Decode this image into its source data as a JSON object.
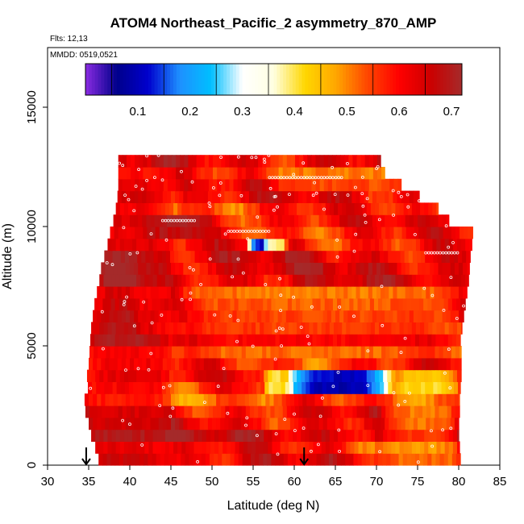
{
  "chart_data": {
    "type": "heatmap",
    "title": "ATOM4 Northeast_Pacific_2 asymmetry_870_AMP",
    "flights_text": "Flts: 12,13",
    "dates_text": "MMDD: 0519,0521",
    "xlabel": "Latitude (deg N)",
    "ylabel": "Altitude (m)",
    "xlim": [
      30,
      85
    ],
    "ylim": [
      0,
      17500
    ],
    "xticks": [
      "30",
      "35",
      "40",
      "45",
      "50",
      "55",
      "60",
      "65",
      "70",
      "75",
      "80",
      "85"
    ],
    "yticks": [
      "0",
      "5000",
      "10000",
      "15000"
    ],
    "colorbar": {
      "range": [
        0.0,
        0.72
      ],
      "ticks": [
        "0.1",
        "0.2",
        "0.3",
        "0.4",
        "0.5",
        "0.6",
        "0.7"
      ],
      "colors": [
        "#8a2be2",
        "#00008b",
        "#0000cd",
        "#1e90ff",
        "#00bfff",
        "#ffffff",
        "#ffffe0",
        "#ffd700",
        "#ffa500",
        "#ff4500",
        "#ff0000",
        "#cc0000",
        "#a52a2a"
      ]
    },
    "flight_marker_latitudes": [
      34.7,
      61.2
    ],
    "envelope": [
      [
        0,
        36.2,
        80.2
      ],
      [
        500,
        35.8,
        80.1
      ],
      [
        1000,
        35.3,
        80.0
      ],
      [
        1500,
        35.0,
        80.0
      ],
      [
        2000,
        34.6,
        80.1
      ],
      [
        2500,
        34.5,
        80.1
      ],
      [
        3000,
        34.9,
        80.2
      ],
      [
        3500,
        34.8,
        80.3
      ],
      [
        4000,
        35.0,
        80.3
      ],
      [
        4500,
        35.1,
        80.3
      ],
      [
        5000,
        35.2,
        80.2
      ],
      [
        5500,
        35.3,
        80.4
      ],
      [
        6000,
        35.5,
        80.6
      ],
      [
        6500,
        35.7,
        80.8
      ],
      [
        7000,
        36.0,
        81.0
      ],
      [
        7500,
        36.3,
        81.2
      ],
      [
        8000,
        36.5,
        81.3
      ],
      [
        8500,
        36.9,
        81.4
      ],
      [
        9000,
        37.3,
        81.6
      ],
      [
        9500,
        37.6,
        81.7
      ],
      [
        10000,
        38.0,
        78.8
      ],
      [
        10500,
        38.3,
        77.5
      ],
      [
        11000,
        38.5,
        75.2
      ],
      [
        11500,
        38.6,
        73.0
      ],
      [
        12000,
        38.6,
        71.0
      ],
      [
        12500,
        38.6,
        70.5
      ]
    ],
    "regions": [
      {
        "lat": [
          34,
          45
        ],
        "alt": [
          0,
          12600
        ],
        "value": 0.64
      },
      {
        "lat": [
          36,
          41
        ],
        "alt": [
          5500,
          9000
        ],
        "value": 0.69
      },
      {
        "lat": [
          41,
          50
        ],
        "alt": [
          9600,
          10400
        ],
        "value": 0.7
      },
      {
        "lat": [
          54,
          58
        ],
        "alt": [
          8800,
          9300
        ],
        "value": 0.12
      },
      {
        "lat": [
          56,
          59
        ],
        "alt": [
          8800,
          9300
        ],
        "value": 0.38
      },
      {
        "lat": [
          58,
          72
        ],
        "alt": [
          3000,
          4000
        ],
        "value": 0.12
      },
      {
        "lat": [
          56,
          59
        ],
        "alt": [
          3000,
          4000
        ],
        "value": 0.42
      },
      {
        "lat": [
          72,
          80
        ],
        "alt": [
          3000,
          4000
        ],
        "value": 0.45
      },
      {
        "lat": [
          48,
          58
        ],
        "alt": [
          1800,
          2200
        ],
        "value": 0.4
      },
      {
        "lat": [
          45,
          80
        ],
        "alt": [
          4500,
          7500
        ],
        "value": 0.55
      },
      {
        "lat": [
          56,
          76
        ],
        "alt": [
          11500,
          12300
        ],
        "value": 0.55
      },
      {
        "lat": [
          70,
          80
        ],
        "alt": [
          0,
          2500
        ],
        "value": 0.5
      }
    ]
  }
}
